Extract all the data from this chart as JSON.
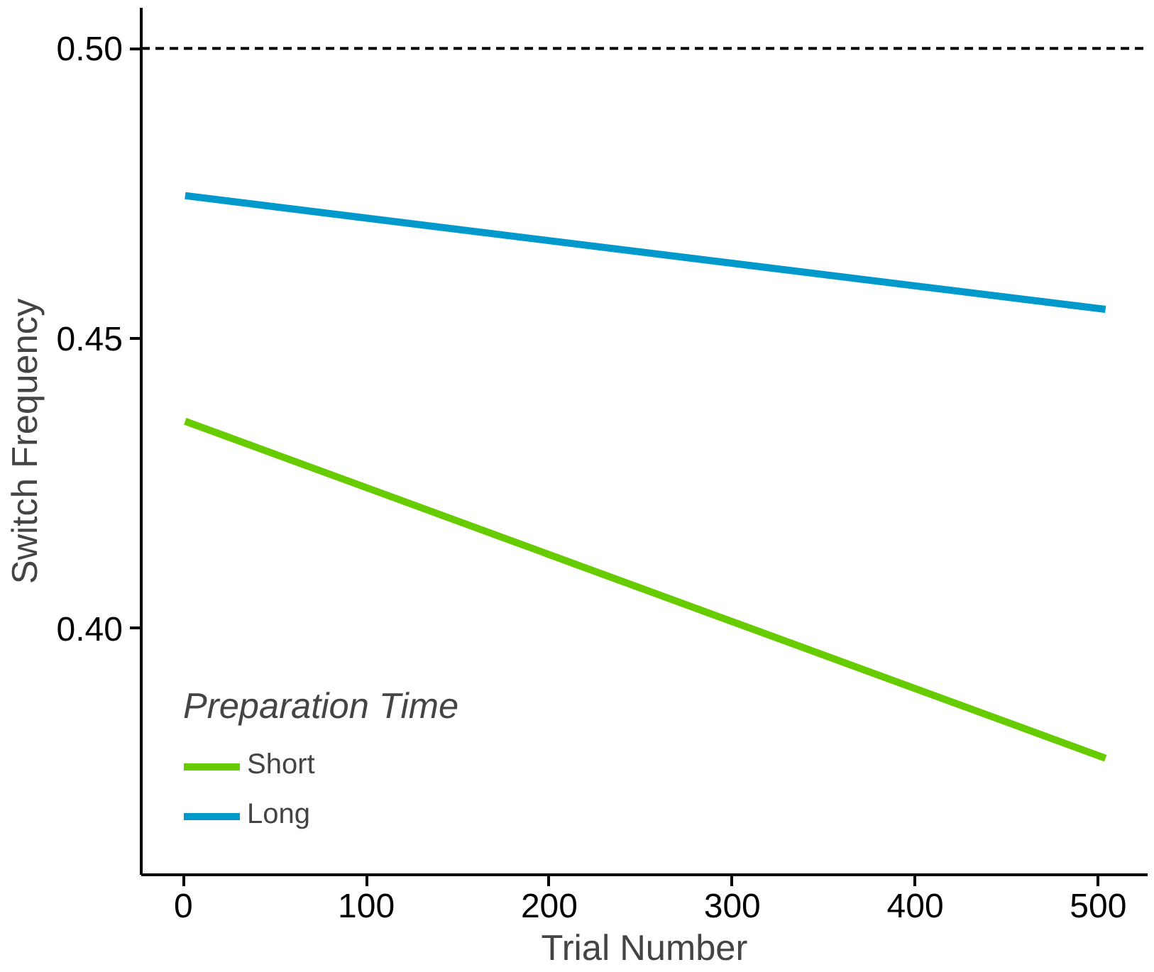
{
  "chart_data": {
    "type": "line",
    "xlabel": "Trial Number",
    "ylabel": "Switch Frequency",
    "legend_title": "Preparation Time",
    "xlim": [
      -23,
      527
    ],
    "ylim": [
      0.3575,
      0.507
    ],
    "xticks": [
      0,
      100,
      200,
      300,
      400,
      500
    ],
    "yticks": [
      {
        "value": 0.4,
        "label": "0.40"
      },
      {
        "value": 0.45,
        "label": "0.45"
      },
      {
        "value": 0.5,
        "label": "0.50"
      }
    ],
    "grid": false,
    "legend": "bottom left",
    "x": [
      1,
      504
    ],
    "series": [
      {
        "name": "Short",
        "color": "#66cc00",
        "values": [
          0.4357,
          0.3776
        ]
      },
      {
        "name": "Long",
        "color": "#0099cc",
        "values": [
          0.4746,
          0.455
        ]
      }
    ],
    "ref_lines": [
      {
        "axis": "y",
        "value": 0.5,
        "label": null,
        "color": "#000000",
        "line_style": "dashed"
      }
    ]
  }
}
